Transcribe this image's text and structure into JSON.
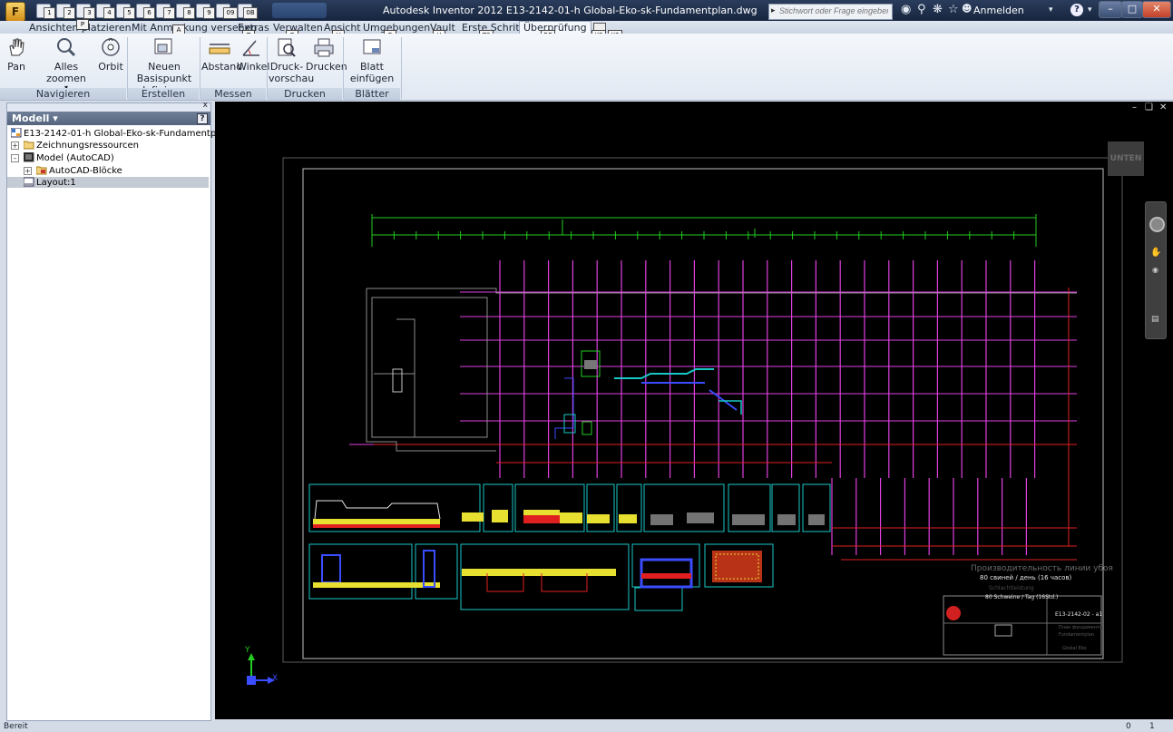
{
  "app": {
    "menu_letter": "F",
    "title": "Autodesk Inventor 2012   E13-2142-01-h Global-Eko-sk-Fundamentplan.dwg",
    "search_placeholder": "Stichwort oder Frage eingeben",
    "login_label": "Anmelden",
    "help_label": "?",
    "qat_keytips": [
      "1",
      "2",
      "3",
      "4",
      "5",
      "6",
      "7",
      "8",
      "9",
      "09",
      "0B"
    ]
  },
  "tabs": [
    {
      "label": "Ansichten platzieren",
      "keytip": "P"
    },
    {
      "label": "Mit Anmerkung versehen",
      "keytip": "A"
    },
    {
      "label": "Extras",
      "keytip": "T"
    },
    {
      "label": "Verwalten",
      "keytip": "G"
    },
    {
      "label": "Ansicht",
      "keytip": "V"
    },
    {
      "label": "Umgebungen",
      "keytip": "E"
    },
    {
      "label": "Vault",
      "keytip": "U"
    },
    {
      "label": "Erste Schritte",
      "keytip": "ZS"
    },
    {
      "label": "Überprüfung",
      "keytip": "RE"
    },
    {
      "label": "",
      "keytip": "X2"
    },
    {
      "label": "",
      "keytip": "X3"
    }
  ],
  "ribbon": {
    "buttons": {
      "pan": "Pan",
      "zoom_all": "Alles zoomen",
      "orbit": "Orbit",
      "new_base_1": "Neuen Basispunkt",
      "new_base_2": "definieren",
      "distance": "Abstand",
      "angle": "Winkel",
      "preview_1": "Druck-",
      "preview_2": "vorschau",
      "print": "Drucken",
      "insert_sheet": "Blatt einfügen"
    },
    "panels": {
      "navigate": "Navigieren",
      "create": "Erstellen",
      "measure": "Messen",
      "print": "Drucken",
      "sheets": "Blätter"
    }
  },
  "browser": {
    "title": "Modell",
    "help_icon": "?",
    "close_label": "x",
    "items": {
      "root": "E13-2142-01-h Global-Eko-sk-Fundamentplan.dwg",
      "resources": "Zeichnungsressourcen",
      "model": "Model (AutoCAD)",
      "blocks": "AutoCAD-Blöcke",
      "layout": "Layout:1"
    }
  },
  "viewport": {
    "viewcube_label": "UNTEN",
    "axis_y": "Y",
    "axis_x": "X",
    "annotation_line1": "Производительность линии убоя",
    "annotation_line2": "80 свиней / день (16 часов)",
    "annotation_line3": "Schlachtleistung",
    "annotation_line4": "80 Schweine / Tag (16Std.)",
    "drawing_number": "E13-2142-02 - a1",
    "title_ru_1": "План фундамента",
    "title_ru_2": "Fundamentplan",
    "company": "Global Eko"
  },
  "status": {
    "text": "Bereit",
    "count_1": "0",
    "count_2": "1"
  },
  "colors": {
    "cad_magenta": "#e040e0",
    "cad_green": "#22cc22",
    "cad_cyan": "#19c7c7",
    "cad_yellow": "#e8e030",
    "cad_red": "#e02020",
    "cad_white": "#e6e6e6",
    "cad_blue": "#3a4dff"
  }
}
